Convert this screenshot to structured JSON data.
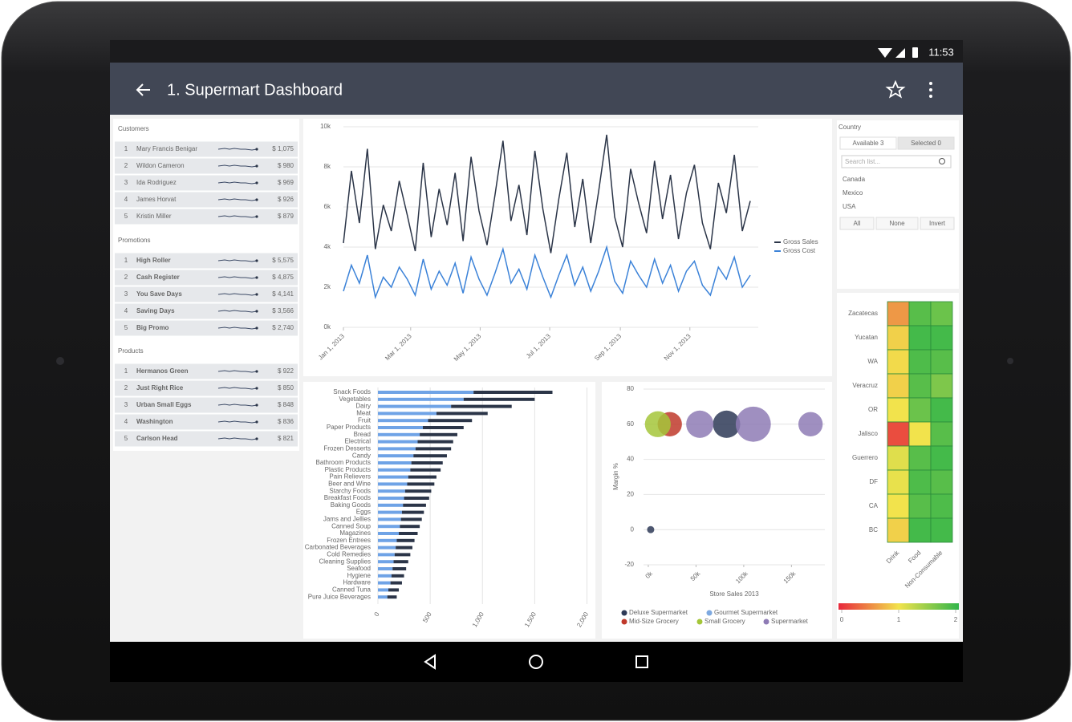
{
  "status_bar": {
    "time": "11:53"
  },
  "app_bar": {
    "title": "1. Supermart Dashboard"
  },
  "lists": [
    {
      "title": "Customers",
      "rows": [
        {
          "rank": "1",
          "name": "Mary Francis Benigar",
          "value": "$ 1,075"
        },
        {
          "rank": "2",
          "name": "Wildon Cameron",
          "value": "$ 980"
        },
        {
          "rank": "3",
          "name": "Ida Rodriguez",
          "value": "$ 969"
        },
        {
          "rank": "4",
          "name": "James Horvat",
          "value": "$ 926"
        },
        {
          "rank": "5",
          "name": "Kristin Miller",
          "value": "$ 879"
        }
      ]
    },
    {
      "title": "Promotions",
      "rows": [
        {
          "rank": "1",
          "name": "High Roller",
          "value": "$ 5,575"
        },
        {
          "rank": "2",
          "name": "Cash Register",
          "value": "$ 4,875"
        },
        {
          "rank": "3",
          "name": "You Save Days",
          "value": "$ 4,141"
        },
        {
          "rank": "4",
          "name": "Saving Days",
          "value": "$ 3,566"
        },
        {
          "rank": "5",
          "name": "Big Promo",
          "value": "$ 2,740"
        }
      ]
    },
    {
      "title": "Products",
      "rows": [
        {
          "rank": "1",
          "name": "Hermanos Green",
          "value": "$ 922"
        },
        {
          "rank": "2",
          "name": "Just Right Rice",
          "value": "$ 850"
        },
        {
          "rank": "3",
          "name": "Urban Small Eggs",
          "value": "$ 848"
        },
        {
          "rank": "4",
          "name": "Washington",
          "value": "$ 836"
        },
        {
          "rank": "5",
          "name": "Carlson Head",
          "value": "$ 821"
        }
      ]
    }
  ],
  "country_filter": {
    "label": "Country",
    "tabs": [
      "Available 3",
      "Selected 0"
    ],
    "search_placeholder": "Search list...",
    "items": [
      "Canada",
      "Mexico",
      "USA"
    ],
    "buttons": [
      "All",
      "None",
      "Invert"
    ]
  },
  "chart_data": [
    {
      "type": "line",
      "grid": true,
      "legend": "right",
      "x": [
        "2013-01-01",
        "2013-01-08",
        "2013-01-15",
        "2013-01-22",
        "2013-01-29",
        "2013-02-05",
        "2013-02-12",
        "2013-02-19",
        "2013-02-26",
        "2013-03-05",
        "2013-03-12",
        "2013-03-19",
        "2013-03-26",
        "2013-04-02",
        "2013-04-09",
        "2013-04-16",
        "2013-04-23",
        "2013-04-30",
        "2013-05-07",
        "2013-05-14",
        "2013-05-21",
        "2013-05-28",
        "2013-06-04",
        "2013-06-11",
        "2013-06-18",
        "2013-06-25",
        "2013-07-02",
        "2013-07-09",
        "2013-07-16",
        "2013-07-23",
        "2013-07-30",
        "2013-08-06",
        "2013-08-13",
        "2013-08-20",
        "2013-08-27",
        "2013-09-03",
        "2013-09-10",
        "2013-09-17",
        "2013-09-24",
        "2013-10-01",
        "2013-10-08",
        "2013-10-15",
        "2013-10-22",
        "2013-10-29",
        "2013-11-05",
        "2013-11-12",
        "2013-11-19",
        "2013-11-26",
        "2013-12-03",
        "2013-12-10",
        "2013-12-17",
        "2013-12-24"
      ],
      "xlim": [
        "2013-01-01",
        "2013-12-31"
      ],
      "xticks": [
        {
          "value": "2013-01-01",
          "label": "Jan 1, 2013"
        },
        {
          "value": "2013-03-01",
          "label": "Mar 1, 2013"
        },
        {
          "value": "2013-05-01",
          "label": "May 1, 2013"
        },
        {
          "value": "2013-07-01",
          "label": "Jul 1, 2013"
        },
        {
          "value": "2013-09-01",
          "label": "Sep 1, 2013"
        },
        {
          "value": "2013-11-01",
          "label": "Nov 1, 2013"
        }
      ],
      "ylim": [
        0,
        10000
      ],
      "yticks": [
        {
          "value": 0,
          "label": "0k"
        },
        {
          "value": 2000,
          "label": "2k"
        },
        {
          "value": 4000,
          "label": "4k"
        },
        {
          "value": 6000,
          "label": "6k"
        },
        {
          "value": 8000,
          "label": "8k"
        },
        {
          "value": 10000,
          "label": "10k"
        }
      ],
      "series": [
        {
          "name": "Gross Sales",
          "color": "#2b3548",
          "values": [
            4200,
            7800,
            5200,
            8900,
            3900,
            6100,
            4800,
            7300,
            5600,
            3800,
            8200,
            4500,
            6900,
            5100,
            7700,
            4300,
            8500,
            5800,
            4100,
            6600,
            9300,
            5300,
            7100,
            4600,
            8800,
            5900,
            3700,
            6400,
            8700,
            5000,
            7400,
            4200,
            6800,
            9600,
            5500,
            4000,
            7900,
            6200,
            4700,
            8300,
            5400,
            7600,
            4400,
            6700,
            8100,
            5200,
            3900,
            7200,
            5700,
            8600,
            4800,
            6300
          ]
        },
        {
          "name": "Gross Cost",
          "color": "#3b82d8",
          "values": [
            1800,
            3100,
            2200,
            3600,
            1500,
            2500,
            2000,
            3000,
            2400,
            1600,
            3400,
            1900,
            2800,
            2100,
            3200,
            1700,
            3500,
            2400,
            1600,
            2700,
            3900,
            2200,
            2900,
            1900,
            3600,
            2500,
            1500,
            2600,
            3600,
            2100,
            3000,
            1800,
            2800,
            4000,
            2300,
            1700,
            3300,
            2600,
            2000,
            3400,
            2200,
            3100,
            1800,
            2800,
            3300,
            2100,
            1600,
            3000,
            2400,
            3500,
            2000,
            2600
          ]
        }
      ]
    },
    {
      "type": "bar",
      "orientation": "horizontal",
      "stacked": true,
      "grid": true,
      "categories": [
        "Snack Foods",
        "Vegetables",
        "Dairy",
        "Meat",
        "Fruit",
        "Paper Products",
        "Bread",
        "Electrical",
        "Frozen Desserts",
        "Candy",
        "Bathroom Products",
        "Plastic Products",
        "Pain Relievers",
        "Beer and Wine",
        "Starchy Foods",
        "Breakfast Foods",
        "Baking Goods",
        "Eggs",
        "Jams and Jellies",
        "Canned Soup",
        "Magazines",
        "Frozen Entrees",
        "Carbonated Beverages",
        "Cold Remedies",
        "Cleaning Supplies",
        "Seafood",
        "Hygiene",
        "Hardware",
        "Canned Tuna",
        "Pure Juice Beverages"
      ],
      "xlim": [
        0,
        2050
      ],
      "xticks": [
        0,
        500,
        {
          "value": 1000,
          "label": "1,000"
        },
        {
          "value": 1500,
          "label": "1,500"
        },
        {
          "value": 2000,
          "label": "2,000"
        }
      ],
      "series": [
        {
          "color": "#6fa3e6",
          "values": [
            915,
            820,
            700,
            560,
            480,
            430,
            400,
            380,
            360,
            340,
            320,
            310,
            290,
            280,
            260,
            250,
            240,
            230,
            220,
            210,
            200,
            180,
            170,
            160,
            150,
            140,
            130,
            120,
            100,
            90
          ]
        },
        {
          "color": "#2b3548",
          "values": [
            755,
            680,
            580,
            490,
            420,
            390,
            360,
            340,
            340,
            320,
            300,
            290,
            270,
            260,
            250,
            240,
            220,
            210,
            200,
            190,
            180,
            170,
            160,
            150,
            140,
            130,
            120,
            110,
            100,
            90
          ]
        }
      ]
    },
    {
      "type": "bubble",
      "grid": true,
      "legend": "bottom",
      "xlabel": "Store Sales 2013",
      "ylabel": "Margin %",
      "xlim": [
        -5000,
        185000
      ],
      "xticks": [
        {
          "value": 0,
          "label": "0k"
        },
        {
          "value": 50000,
          "label": "50k"
        },
        {
          "value": 100000,
          "label": "100k"
        },
        {
          "value": 150000,
          "label": "150k"
        }
      ],
      "ylim": [
        -20,
        80
      ],
      "yticks": [
        -20,
        0,
        20,
        40,
        60,
        80
      ],
      "series": [
        {
          "name": "Deluxe Supermarket",
          "color": "#2e3a57",
          "x": [
            82000,
            2500
          ],
          "values": [
            60,
            0
          ],
          "sizes": [
            290,
            20
          ]
        },
        {
          "name": "Gourmet Supermarket",
          "color": "#7ea9e0",
          "x": [],
          "values": [],
          "sizes": []
        },
        {
          "name": "Mid-Size Grocery",
          "color": "#c0392b",
          "x": [
            22500
          ],
          "values": [
            60
          ],
          "sizes": [
            230
          ]
        },
        {
          "name": "Small Grocery",
          "color": "#a4c639",
          "x": [
            10000
          ],
          "values": [
            60
          ],
          "sizes": [
            260
          ]
        },
        {
          "name": "Supermarket",
          "color": "#8e7bb5",
          "x": [
            54000,
            110000,
            170000
          ],
          "values": [
            60,
            60,
            60
          ],
          "sizes": [
            290,
            480,
            230
          ]
        }
      ]
    },
    {
      "type": "heatmap",
      "x": [
        "Drink",
        "Food",
        "Non-Consumable"
      ],
      "y": [
        "Zacatecas",
        "Yucatan",
        "WA",
        "Veracruz",
        "OR",
        "Jalisco",
        "Guerrero",
        "DF",
        "CA",
        "BC"
      ],
      "values": [
        [
          0.6,
          1.8,
          1.7
        ],
        [
          0.9,
          1.9,
          1.9
        ],
        [
          0.95,
          1.85,
          1.8
        ],
        [
          0.9,
          1.8,
          1.6
        ],
        [
          1.0,
          1.7,
          1.9
        ],
        [
          0.2,
          1.0,
          1.8
        ],
        [
          1.1,
          1.8,
          1.9
        ],
        [
          1.05,
          1.85,
          1.8
        ],
        [
          1.0,
          1.8,
          1.85
        ],
        [
          0.9,
          1.9,
          1.9
        ]
      ],
      "zlim": [
        0,
        2
      ],
      "zticks": [
        0,
        1,
        2
      ],
      "colors": [
        "#e8283c",
        "#f2e34c",
        "#31b54a"
      ]
    }
  ]
}
